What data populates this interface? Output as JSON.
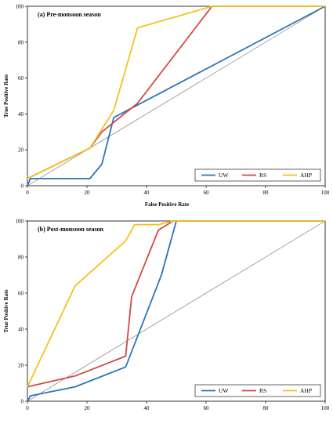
{
  "legend_title": "",
  "chart_data": [
    {
      "type": "line",
      "title": "(a) Pre-monsoon  season",
      "xlabel": "False Positive Rate",
      "ylabel": "True Positive Rate",
      "xlim": [
        0,
        100
      ],
      "ylim": [
        0,
        100
      ],
      "xticks": [
        "0",
        "20",
        "40",
        "60",
        "80",
        "100"
      ],
      "yticks": [
        "0",
        "20",
        "40",
        "60",
        "80",
        "100"
      ],
      "grid": false,
      "legend_position": "bottom-right",
      "reference_line": {
        "x": [
          0,
          100
        ],
        "y": [
          0,
          100
        ],
        "color": "#7f7f7f"
      },
      "series": [
        {
          "name": "UW",
          "color": "#2e75b6",
          "x": [
            0,
            1,
            21,
            25,
            29,
            100
          ],
          "y": [
            0,
            4,
            4,
            12,
            38,
            100
          ]
        },
        {
          "name": "RS",
          "color": "#d04a45",
          "x": [
            0,
            21,
            25,
            37,
            62,
            100
          ],
          "y": [
            4,
            21,
            30,
            46,
            100,
            100
          ]
        },
        {
          "name": "AHP",
          "color": "#f5c11e",
          "x": [
            0,
            21,
            29,
            37,
            62,
            100
          ],
          "y": [
            4,
            21,
            42,
            88,
            100,
            100
          ]
        }
      ]
    },
    {
      "type": "line",
      "title": "(b) Post-monsoon  season",
      "xlabel": "",
      "ylabel": "True Positive Rate",
      "xlim": [
        0,
        100
      ],
      "ylim": [
        0,
        100
      ],
      "xticks": [
        "0",
        "20",
        "40",
        "60",
        "80",
        "100"
      ],
      "yticks": [
        "0",
        "20",
        "40",
        "60",
        "80",
        "100"
      ],
      "grid": false,
      "legend_position": "bottom-right",
      "reference_line": {
        "x": [
          0,
          100
        ],
        "y": [
          0,
          100
        ],
        "color": "#7f7f7f"
      },
      "series": [
        {
          "name": "UW",
          "color": "#2e75b6",
          "x": [
            0,
            1,
            16,
            33,
            45,
            50,
            100
          ],
          "y": [
            0,
            3,
            8,
            19,
            70,
            100,
            100
          ]
        },
        {
          "name": "RS",
          "color": "#d04a45",
          "x": [
            0,
            16,
            33,
            35,
            44,
            49,
            100
          ],
          "y": [
            8,
            14,
            25,
            58,
            95,
            100,
            100
          ]
        },
        {
          "name": "AHP",
          "color": "#f5c11e",
          "x": [
            0,
            16,
            33,
            36,
            44,
            49,
            100
          ],
          "y": [
            8,
            64,
            89,
            98,
            98,
            100,
            100
          ]
        }
      ]
    }
  ]
}
